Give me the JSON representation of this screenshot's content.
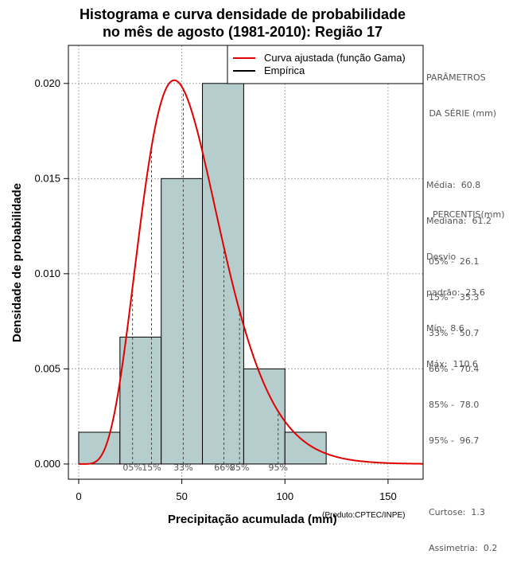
{
  "chart_data": {
    "type": "bar",
    "title_line1": "Histograma e curva densidade de probabilidade",
    "title_line2": "no mês de agosto (1981-2010): Região 17",
    "xlabel": "Precipitação acumulada (mm)",
    "ylabel": "Densidade de probabilidade",
    "credit": "(Produto:CPTEC/INPE)",
    "xlim": [
      -5,
      167
    ],
    "ylim": [
      -0.0008,
      0.022
    ],
    "x_ticks": [
      0,
      50,
      100,
      150
    ],
    "y_ticks": [
      "0.000",
      "0.005",
      "0.010",
      "0.015",
      "0.020"
    ],
    "grid": true,
    "legend_position": "top-right",
    "bins": [
      {
        "from": 0,
        "to": 20,
        "density": 0.00167
      },
      {
        "from": 20,
        "to": 40,
        "density": 0.00667
      },
      {
        "from": 40,
        "to": 60,
        "density": 0.015
      },
      {
        "from": 60,
        "to": 80,
        "density": 0.02
      },
      {
        "from": 80,
        "to": 100,
        "density": 0.005
      },
      {
        "from": 100,
        "to": 120,
        "density": 0.00167
      }
    ],
    "series": [
      {
        "name": "Curva ajustada (função Gama)",
        "color": "#e00000",
        "gamma_shape": 6.65,
        "gamma_scale": 8.2
      },
      {
        "name": "Empírica",
        "color": "#000000"
      }
    ],
    "percentile_markers": [
      {
        "label": "05%",
        "x": 26.1
      },
      {
        "label": "15%",
        "x": 35.3
      },
      {
        "label": "33%",
        "x": 50.7
      },
      {
        "label": "66%",
        "x": 70.4
      },
      {
        "label": "85%",
        "x": 78.0
      },
      {
        "label": "95%",
        "x": 96.7
      }
    ],
    "colors": {
      "bar_fill": "#b5cdcd",
      "curve": "#e00000",
      "grid": "#aaaaaa"
    }
  },
  "side_panel": {
    "params_title_1": "PARÂMETROS",
    "params_title_2": " DA SÉRIE (mm)",
    "media": "Média:  60.8",
    "mediana": "Mediana:  61.2",
    "desvio_1": "Desvio",
    "desvio_2": "padrão:  23.6",
    "min": "Mín:  8.6",
    "max": "Máx:  110.6",
    "percentis_title": "PERCENTIS(mm)",
    "p05": "05% -  26.1",
    "p15": "15% -  35.3",
    "p33": "33% -  50.7",
    "p66": "66% -  70.4",
    "p85": "85% -  78.0",
    "p95": "95% -  96.7",
    "curtose": "Curtose:  1.3",
    "assimetria": "Assimetria:  0.2"
  }
}
